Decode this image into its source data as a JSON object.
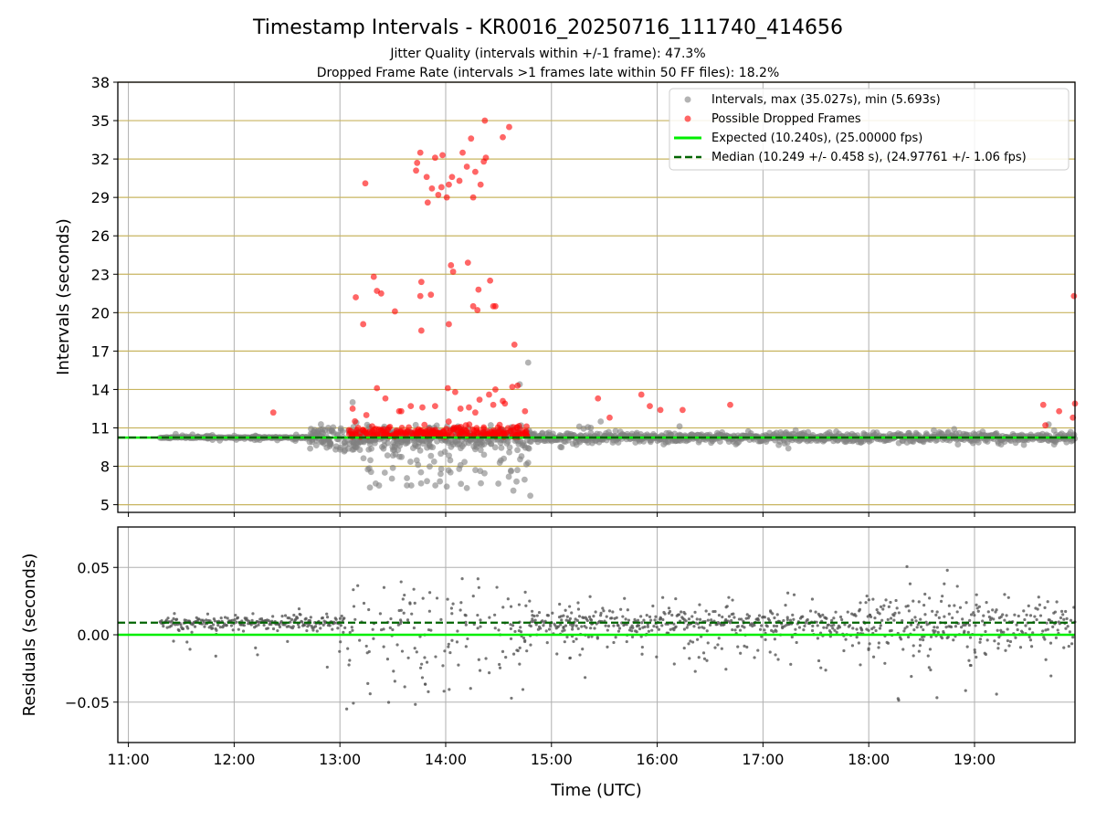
{
  "figure": {
    "title": "Timestamp Intervals - KR0016_20250716_111740_414656",
    "subtitle_1": "Jitter Quality (intervals within +/-1 frame): 47.3%",
    "subtitle_2": "Dropped Frame Rate (intervals >1 frames late within 50 FF files): 18.2%"
  },
  "colors": {
    "intervals": "#808080",
    "dropped": "#ff0000",
    "expected": "#00ee00",
    "median": "#006400",
    "hgrid_top": "#c8b560",
    "grid": "#b0b0b0"
  },
  "chart_data": [
    {
      "type": "scatter",
      "panel": "intervals",
      "ylabel": "Intervals (seconds)",
      "xlabel": "",
      "x_unit": "hours UTC",
      "xlim": [
        10.9,
        19.95
      ],
      "ylim": [
        4.4,
        38
      ],
      "yticks": [
        5,
        8,
        11,
        14,
        17,
        20,
        23,
        26,
        29,
        32,
        35,
        38
      ],
      "xticks": [
        11,
        12,
        13,
        14,
        15,
        16,
        17,
        18,
        19
      ],
      "xtick_labels": [
        "11:00",
        "12:00",
        "13:00",
        "14:00",
        "15:00",
        "16:00",
        "17:00",
        "18:00",
        "19:00"
      ],
      "grid": "both",
      "legend_position": "top-right",
      "legend": [
        "Intervals, max (35.027s), min (5.693s)",
        "Possible Dropped Frames",
        "Expected (10.240s), (25.00000 fps)",
        "Median (10.249 +/- 0.458 s), (24.97761 +/- 1.06 fps)"
      ],
      "expected": 10.24,
      "median": 10.249,
      "dropped_points": [
        [
          12.37,
          12.2
        ],
        [
          13.12,
          12.5
        ],
        [
          13.25,
          12.0
        ],
        [
          13.35,
          14.1
        ],
        [
          13.43,
          13.3
        ],
        [
          13.56,
          12.3
        ],
        [
          13.67,
          12.7
        ],
        [
          13.78,
          12.6
        ],
        [
          13.9,
          12.7
        ],
        [
          14.02,
          14.1
        ],
        [
          14.09,
          13.8
        ],
        [
          14.22,
          12.6
        ],
        [
          14.32,
          13.2
        ],
        [
          14.41,
          13.6
        ],
        [
          14.47,
          14.0
        ],
        [
          14.54,
          13.1
        ],
        [
          14.63,
          14.2
        ],
        [
          14.68,
          14.3
        ],
        [
          14.75,
          12.3
        ],
        [
          14.45,
          12.8
        ],
        [
          14.56,
          12.9
        ],
        [
          14.14,
          12.5
        ],
        [
          14.28,
          12.2
        ],
        [
          13.58,
          12.3
        ],
        [
          13.15,
          21.2
        ],
        [
          13.22,
          19.1
        ],
        [
          13.32,
          22.8
        ],
        [
          13.35,
          21.7
        ],
        [
          13.39,
          21.5
        ],
        [
          13.52,
          20.1
        ],
        [
          13.76,
          21.3
        ],
        [
          13.77,
          22.4
        ],
        [
          13.77,
          18.6
        ],
        [
          13.86,
          21.4
        ],
        [
          14.03,
          19.1
        ],
        [
          14.05,
          23.7
        ],
        [
          14.07,
          23.2
        ],
        [
          14.21,
          23.9
        ],
        [
          14.26,
          20.5
        ],
        [
          14.3,
          20.2
        ],
        [
          14.31,
          21.8
        ],
        [
          14.42,
          22.5
        ],
        [
          14.45,
          20.5
        ],
        [
          14.47,
          20.5
        ],
        [
          14.65,
          17.5
        ],
        [
          13.24,
          30.1
        ],
        [
          13.73,
          31.7
        ],
        [
          13.72,
          31.1
        ],
        [
          13.76,
          32.5
        ],
        [
          13.82,
          30.6
        ],
        [
          13.87,
          29.7
        ],
        [
          13.9,
          32.1
        ],
        [
          13.93,
          29.2
        ],
        [
          13.97,
          32.3
        ],
        [
          14.01,
          29.0
        ],
        [
          14.03,
          30.0
        ],
        [
          14.06,
          30.6
        ],
        [
          14.13,
          30.3
        ],
        [
          14.16,
          32.5
        ],
        [
          14.2,
          31.4
        ],
        [
          14.24,
          33.6
        ],
        [
          14.26,
          29.0
        ],
        [
          14.28,
          31.0
        ],
        [
          14.33,
          30.0
        ],
        [
          14.36,
          31.8
        ],
        [
          14.38,
          32.1
        ],
        [
          14.37,
          35.0
        ],
        [
          14.54,
          33.7
        ],
        [
          14.6,
          34.5
        ],
        [
          13.83,
          28.6
        ],
        [
          13.96,
          29.8
        ],
        [
          15.44,
          13.3
        ],
        [
          15.55,
          11.8
        ],
        [
          15.85,
          13.6
        ],
        [
          15.93,
          12.7
        ],
        [
          16.03,
          12.4
        ],
        [
          16.24,
          12.4
        ],
        [
          16.69,
          12.8
        ],
        [
          19.65,
          12.8
        ],
        [
          19.8,
          12.3
        ],
        [
          19.94,
          21.3
        ],
        [
          19.95,
          12.9
        ],
        [
          19.93,
          11.8
        ],
        [
          19.67,
          11.2
        ]
      ]
    },
    {
      "type": "scatter",
      "panel": "residuals",
      "ylabel": "Residuals (seconds)",
      "xlabel": "Time (UTC)",
      "x_unit": "hours UTC",
      "xlim": [
        10.9,
        19.95
      ],
      "ylim": [
        -0.08,
        0.08
      ],
      "yticks": [
        0.05,
        0.0,
        -0.05
      ],
      "ytick_labels": [
        "0.05",
        "0.00",
        "−0.05"
      ],
      "xticks": [
        11,
        12,
        13,
        14,
        15,
        16,
        17,
        18,
        19
      ],
      "xtick_labels": [
        "11:00",
        "12:00",
        "13:00",
        "14:00",
        "15:00",
        "16:00",
        "17:00",
        "18:00",
        "19:00"
      ],
      "grid": "both",
      "expected": 0.0,
      "median": 0.009
    }
  ]
}
